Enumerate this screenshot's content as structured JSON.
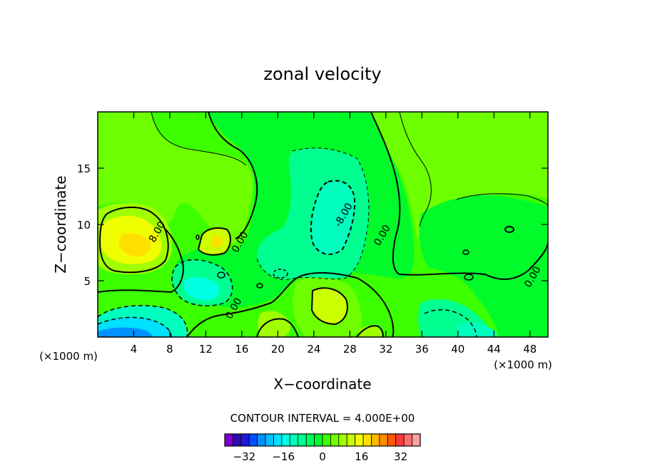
{
  "chart_data": {
    "type": "heatmap",
    "title": "zonal velocity",
    "xlabel": "X−coordinate",
    "ylabel": "Z−coordinate",
    "x_unit_left": "(×1000 m)",
    "x_unit_right": "(×1000 m)",
    "xlim": [
      0,
      50
    ],
    "ylim": [
      0,
      20
    ],
    "x_ticks": [
      4,
      8,
      12,
      16,
      20,
      24,
      28,
      32,
      36,
      40,
      44,
      48
    ],
    "x_tick_labels": [
      "4",
      "8",
      "12",
      "16",
      "20",
      "24",
      "28",
      "32",
      "36",
      "40",
      "44",
      "48"
    ],
    "y_ticks": [
      5,
      10,
      15
    ],
    "y_tick_labels": [
      "5",
      "10",
      "15"
    ],
    "contour_interval_text": "CONTOUR INTERVAL = 4.000E+00",
    "contour_labels": [
      {
        "text": "8.00",
        "x": 6.9,
        "z": 9.2
      },
      {
        "text": "0.00",
        "x": 16.1,
        "z": 8.3
      },
      {
        "text": "0.00",
        "x": 15.4,
        "z": 2.4
      },
      {
        "text": "-8.00",
        "x": 27.6,
        "z": 10.7
      },
      {
        "text": "0.00",
        "x": 31.9,
        "z": 8.9
      },
      {
        "text": "0.00",
        "x": 48.6,
        "z": 5.2
      }
    ],
    "regions": [
      {
        "name": "positive cell west",
        "center_x": 5.6,
        "center_z": 8.3,
        "peak": 12
      },
      {
        "name": "negative jet near surface",
        "center_x": 4.5,
        "center_z": 0.3,
        "peak": -16
      },
      {
        "name": "negative core aloft",
        "center_x": 26.5,
        "center_z": 10.5,
        "peak": -10
      },
      {
        "name": "negative cell low",
        "center_x": 12.8,
        "center_z": 4.0,
        "peak": -12
      },
      {
        "name": "positive cell low centre",
        "center_x": 25.5,
        "center_z": 2.8,
        "peak": 10
      }
    ],
    "colorbar": {
      "min": -40,
      "max": 40,
      "step": 4,
      "tick_values": [
        -32,
        -16,
        0,
        16,
        32
      ],
      "tick_labels": [
        "−32",
        "−16",
        "0",
        "16",
        "32"
      ],
      "colors": [
        "#7f00d4",
        "#2a0fa8",
        "#1a1ad6",
        "#0050ff",
        "#0090ff",
        "#00c0ff",
        "#00e0ff",
        "#00ffe2",
        "#00ffbe",
        "#00ff90",
        "#00ff60",
        "#00fa2a",
        "#3cff00",
        "#6eff00",
        "#a0ff00",
        "#ccff00",
        "#f0ff00",
        "#ffdf00",
        "#ffb500",
        "#ff8a00",
        "#ff5a00",
        "#ff3a3a",
        "#ff6f6f",
        "#ffa0a0"
      ]
    }
  }
}
